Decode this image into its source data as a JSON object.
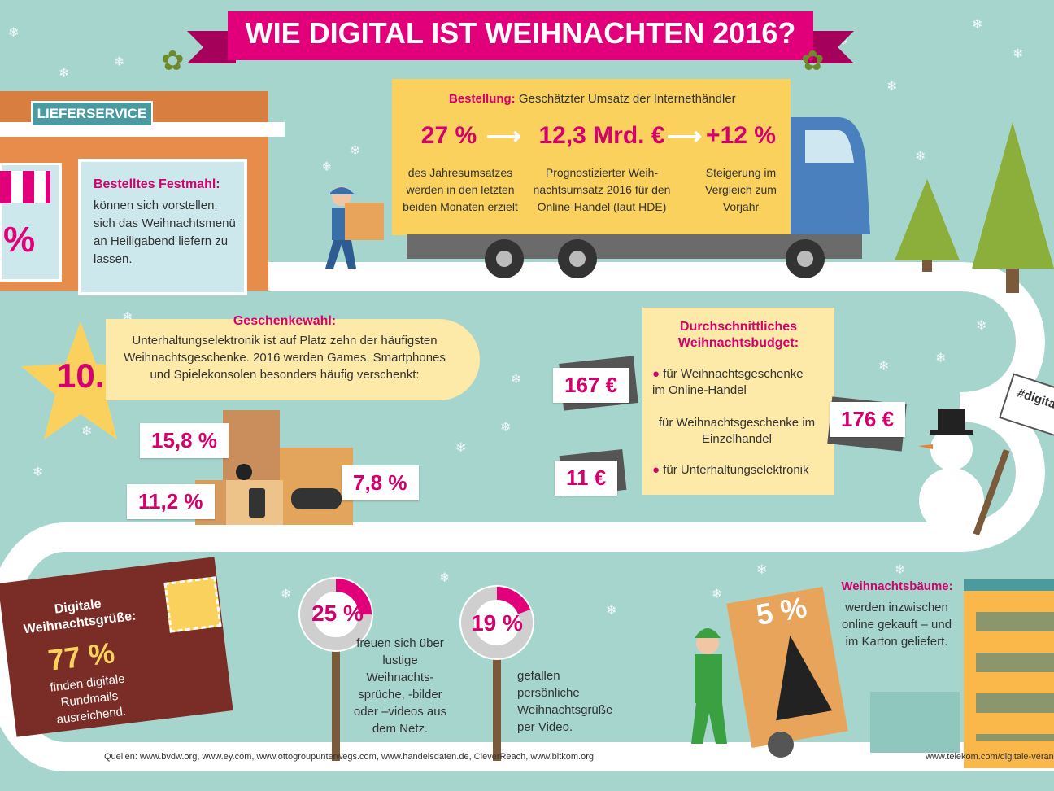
{
  "title": "WIE DIGITAL IST WEIHNACHTEN 2016?",
  "shop": {
    "sign": "LIEFERSERVICE",
    "percent_sign": "%",
    "heading": "Bestelltes Festmahl:",
    "text": "können sich vorstellen, sich das Weihnachtsmenü an Heiligabend liefern zu lassen."
  },
  "order": {
    "heading": "Bestellung:",
    "subheading": "Geschätzter Umsatz der Internethändler",
    "stats": [
      {
        "value": "27 %",
        "text": "des Jahresumsatzes werden in den letzten beiden Monaten erzielt"
      },
      {
        "value": "12,3 Mrd. €",
        "text": "Prognostizierter Weih-nachtsumsatz 2016 für den Online-Handel (laut HDE)"
      },
      {
        "value": "+12 %",
        "text": "Steigerung im Vergleich zum Vorjahr"
      }
    ]
  },
  "gifts": {
    "rank": "10.",
    "heading": "Geschenkewahl:",
    "text": "Unterhaltungselektronik ist auf Platz zehn der häufigsten Weihnachtsgeschenke. 2016 werden Games, Smartphones und Spielekonsolen besonders häufig verschenkt:",
    "tag_games": "15,8 %",
    "tag_phones": "11,2 %",
    "tag_consoles": "7,8 %"
  },
  "budget": {
    "heading": "Durchschnittliches Weihnachtsbudget:",
    "items": [
      {
        "label": "für Weihnachtsgeschenke im Online-Handel",
        "value": "167 €"
      },
      {
        "label": "für Weihnachtsgeschenke im Einzelhandel",
        "value": "176 €"
      },
      {
        "label": "für Unterhaltungselektronik",
        "value": "11 €"
      }
    ],
    "hashtag": "#digitalO"
  },
  "greetings": {
    "heading": "Digitale Weihnachtsgrüße:",
    "value": "77 %",
    "text": "finden digitale Rundmails ausreichend."
  },
  "sayings": {
    "value": "25 %",
    "percent": 25,
    "text": "freuen sich über lustige Weihnachts-sprüche, -bilder oder –videos aus dem Netz."
  },
  "video": {
    "value": "19 %",
    "percent": 19,
    "text": "gefallen persönliche Weihnachtsgrüße per Video."
  },
  "trees": {
    "value": "5 %",
    "heading": "Weihnachtsbäume:",
    "text": "werden inzwischen online gekauft – und im Karton geliefert."
  },
  "footer": {
    "sources": "Quellen: www.bvdw.org, www.ey.com, www.ottogroupunterwegs.com, www.handelsdaten.de, CleverReach, www.bitkom.org",
    "url": "www.telekom.com/digitale-veran"
  },
  "colors": {
    "background": "#a6d5cd",
    "magenta": "#e2007a",
    "yellow": "#fbd15e",
    "truck": "#4a80be",
    "card": "#7a2d26",
    "tree": "#8cae3b"
  }
}
